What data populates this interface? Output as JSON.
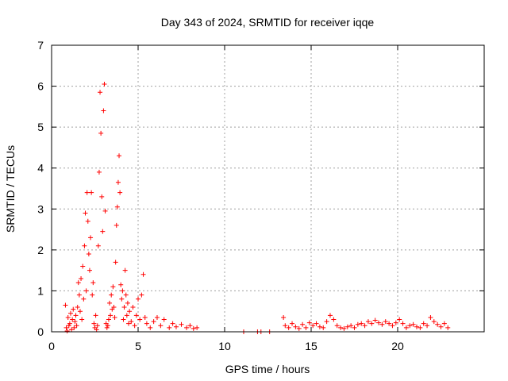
{
  "chart_data": {
    "type": "scatter",
    "title": "Day 343 of 2024, SRMTID for receiver iqqe",
    "xlabel": "GPS time / hours",
    "ylabel": "SRMTID / TECUs",
    "xlim": [
      0,
      25
    ],
    "ylim": [
      0,
      7
    ],
    "xticks": [
      0,
      5,
      10,
      15,
      20
    ],
    "yticks": [
      0,
      1,
      2,
      3,
      4,
      5,
      6,
      7
    ],
    "grid": true,
    "marker": "plus",
    "series": [
      {
        "name": "SRMTID",
        "color": "#ff0000",
        "points": [
          [
            0.8,
            0.65
          ],
          [
            0.85,
            0.1
          ],
          [
            0.9,
            0.02
          ],
          [
            0.95,
            0.35
          ],
          [
            1.0,
            0.15
          ],
          [
            1.05,
            0.2
          ],
          [
            1.1,
            0.45
          ],
          [
            1.15,
            0.05
          ],
          [
            1.2,
            0.3
          ],
          [
            1.25,
            0.55
          ],
          [
            1.3,
            0.1
          ],
          [
            1.35,
            0.25
          ],
          [
            1.4,
            0.4
          ],
          [
            1.45,
            0.15
          ],
          [
            1.5,
            0.6
          ],
          [
            1.55,
            1.2
          ],
          [
            1.6,
            0.9
          ],
          [
            1.65,
            0.5
          ],
          [
            1.7,
            1.3
          ],
          [
            1.75,
            0.3
          ],
          [
            1.8,
            1.6
          ],
          [
            1.85,
            0.8
          ],
          [
            1.9,
            2.1
          ],
          [
            1.95,
            2.9
          ],
          [
            2.0,
            1.0
          ],
          [
            2.05,
            3.4
          ],
          [
            2.1,
            2.7
          ],
          [
            2.15,
            1.9
          ],
          [
            2.2,
            1.5
          ],
          [
            2.25,
            2.3
          ],
          [
            2.3,
            3.4
          ],
          [
            2.35,
            0.9
          ],
          [
            2.4,
            1.2
          ],
          [
            2.45,
            0.2
          ],
          [
            2.5,
            0.1
          ],
          [
            2.55,
            0.4
          ],
          [
            2.6,
            0.05
          ],
          [
            2.65,
            0.15
          ],
          [
            2.7,
            2.1
          ],
          [
            2.75,
            3.9
          ],
          [
            2.8,
            5.85
          ],
          [
            2.85,
            4.85
          ],
          [
            2.9,
            3.3
          ],
          [
            2.95,
            2.45
          ],
          [
            3.0,
            5.4
          ],
          [
            3.05,
            6.05
          ],
          [
            3.1,
            2.95
          ],
          [
            3.15,
            0.2
          ],
          [
            3.2,
            0.1
          ],
          [
            3.25,
            0.15
          ],
          [
            3.3,
            0.3
          ],
          [
            3.35,
            0.7
          ],
          [
            3.4,
            0.4
          ],
          [
            3.45,
            0.9
          ],
          [
            3.5,
            0.55
          ],
          [
            3.55,
            1.1
          ],
          [
            3.6,
            0.6
          ],
          [
            3.65,
            0.35
          ],
          [
            3.7,
            1.7
          ],
          [
            3.75,
            2.6
          ],
          [
            3.8,
            3.05
          ],
          [
            3.85,
            3.65
          ],
          [
            3.9,
            4.3
          ],
          [
            3.95,
            3.4
          ],
          [
            4.0,
            1.15
          ],
          [
            4.05,
            0.8
          ],
          [
            4.1,
            1.0
          ],
          [
            4.15,
            0.3
          ],
          [
            4.2,
            0.6
          ],
          [
            4.25,
            1.5
          ],
          [
            4.3,
            0.9
          ],
          [
            4.35,
            0.4
          ],
          [
            4.4,
            0.7
          ],
          [
            4.45,
            0.2
          ],
          [
            4.5,
            0.5
          ],
          [
            4.6,
            0.25
          ],
          [
            4.7,
            0.6
          ],
          [
            4.8,
            0.15
          ],
          [
            4.9,
            0.4
          ],
          [
            5.0,
            0.8
          ],
          [
            5.1,
            0.3
          ],
          [
            5.2,
            0.9
          ],
          [
            5.3,
            1.4
          ],
          [
            5.4,
            0.35
          ],
          [
            5.5,
            0.2
          ],
          [
            5.7,
            0.1
          ],
          [
            5.9,
            0.25
          ],
          [
            6.1,
            0.35
          ],
          [
            6.3,
            0.15
          ],
          [
            6.5,
            0.3
          ],
          [
            6.8,
            0.1
          ],
          [
            7.0,
            0.2
          ],
          [
            7.2,
            0.12
          ],
          [
            7.5,
            0.18
          ],
          [
            7.8,
            0.1
          ],
          [
            8.0,
            0.15
          ],
          [
            8.2,
            0.08
          ],
          [
            8.4,
            0.1
          ],
          [
            11.1,
            0.0
          ],
          [
            11.9,
            0.0
          ],
          [
            12.1,
            0.0
          ],
          [
            12.6,
            0.0
          ],
          [
            13.4,
            0.35
          ],
          [
            13.5,
            0.15
          ],
          [
            13.7,
            0.1
          ],
          [
            13.9,
            0.2
          ],
          [
            14.1,
            0.12
          ],
          [
            14.3,
            0.08
          ],
          [
            14.5,
            0.18
          ],
          [
            14.7,
            0.1
          ],
          [
            14.9,
            0.22
          ],
          [
            15.1,
            0.15
          ],
          [
            15.3,
            0.2
          ],
          [
            15.5,
            0.12
          ],
          [
            15.7,
            0.1
          ],
          [
            15.9,
            0.25
          ],
          [
            16.1,
            0.4
          ],
          [
            16.3,
            0.3
          ],
          [
            16.5,
            0.15
          ],
          [
            16.7,
            0.1
          ],
          [
            16.9,
            0.08
          ],
          [
            17.1,
            0.12
          ],
          [
            17.3,
            0.15
          ],
          [
            17.5,
            0.1
          ],
          [
            17.7,
            0.18
          ],
          [
            17.9,
            0.2
          ],
          [
            18.1,
            0.15
          ],
          [
            18.3,
            0.25
          ],
          [
            18.5,
            0.2
          ],
          [
            18.7,
            0.28
          ],
          [
            18.9,
            0.22
          ],
          [
            19.1,
            0.18
          ],
          [
            19.3,
            0.25
          ],
          [
            19.5,
            0.2
          ],
          [
            19.7,
            0.15
          ],
          [
            19.9,
            0.22
          ],
          [
            20.1,
            0.3
          ],
          [
            20.3,
            0.2
          ],
          [
            20.5,
            0.1
          ],
          [
            20.7,
            0.15
          ],
          [
            20.9,
            0.18
          ],
          [
            21.1,
            0.12
          ],
          [
            21.3,
            0.1
          ],
          [
            21.5,
            0.2
          ],
          [
            21.7,
            0.15
          ],
          [
            21.9,
            0.35
          ],
          [
            22.1,
            0.25
          ],
          [
            22.3,
            0.18
          ],
          [
            22.5,
            0.12
          ],
          [
            22.7,
            0.2
          ],
          [
            22.9,
            0.1
          ]
        ]
      }
    ]
  }
}
